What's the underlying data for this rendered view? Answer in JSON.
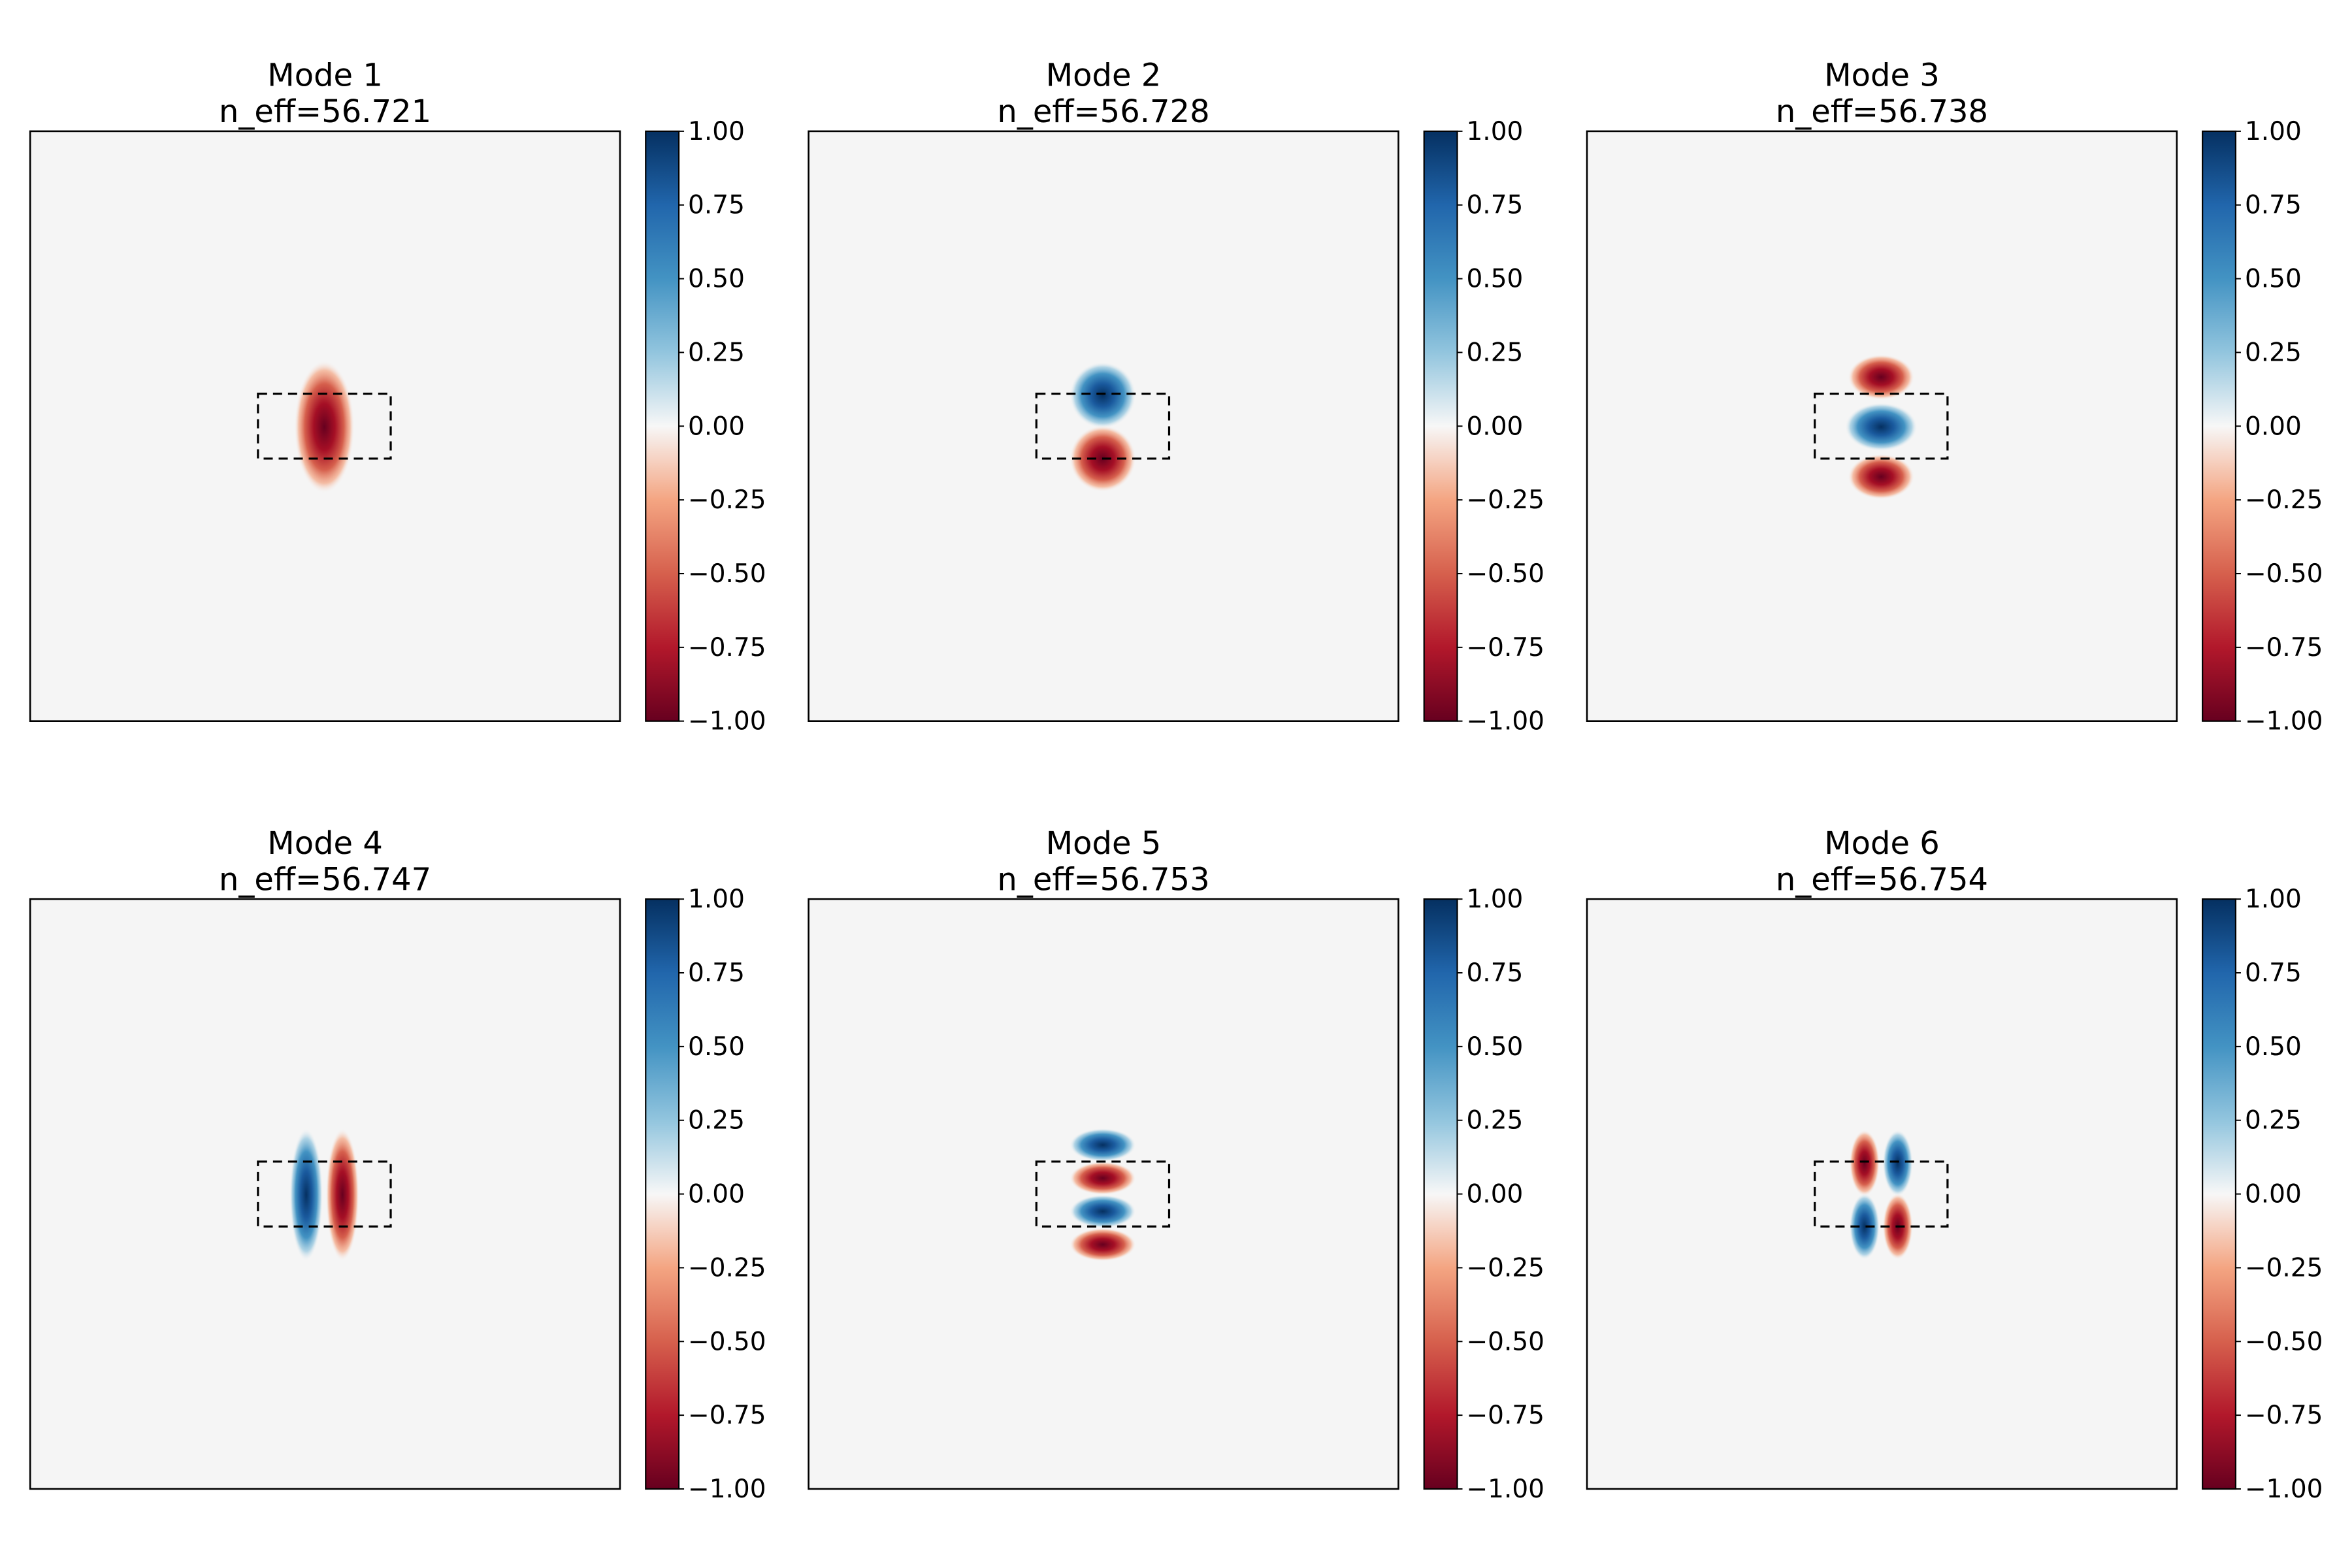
{
  "figure": {
    "layout": "2x3 grid of field-mode heatmaps with colorbars"
  },
  "chart_data": [
    {
      "type": "heatmap",
      "title": "Mode 1",
      "subtitle": "n_eff=56.721",
      "pattern": "single red lobe centered in waveguide",
      "clim": [
        -1.0,
        1.0
      ],
      "colormap": "RdBu",
      "colorbar_ticks": [
        "1.00",
        "0.75",
        "0.50",
        "0.25",
        "0.00",
        "−0.25",
        "−0.50",
        "−0.75",
        "−1.00"
      ],
      "core_outline": "dashed rectangle"
    },
    {
      "type": "heatmap",
      "title": "Mode 2",
      "subtitle": "n_eff=56.728",
      "pattern": "two vertical lobes: blue top, red bottom",
      "clim": [
        -1.0,
        1.0
      ],
      "colormap": "RdBu",
      "colorbar_ticks": [
        "1.00",
        "0.75",
        "0.50",
        "0.25",
        "0.00",
        "−0.25",
        "−0.50",
        "−0.75",
        "−1.00"
      ],
      "core_outline": "dashed rectangle"
    },
    {
      "type": "heatmap",
      "title": "Mode 3",
      "subtitle": "n_eff=56.738",
      "pattern": "three vertical lobes: red, blue, red",
      "clim": [
        -1.0,
        1.0
      ],
      "colormap": "RdBu",
      "colorbar_ticks": [
        "1.00",
        "0.75",
        "0.50",
        "0.25",
        "0.00",
        "−0.25",
        "−0.50",
        "−0.75",
        "−1.00"
      ],
      "core_outline": "dashed rectangle"
    },
    {
      "type": "heatmap",
      "title": "Mode 4",
      "subtitle": "n_eff=56.747",
      "pattern": "two horizontal lobes: blue left, red right",
      "clim": [
        -1.0,
        1.0
      ],
      "colormap": "RdBu",
      "colorbar_ticks": [
        "1.00",
        "0.75",
        "0.50",
        "0.25",
        "0.00",
        "−0.25",
        "−0.50",
        "−0.75",
        "−1.00"
      ],
      "core_outline": "dashed rectangle"
    },
    {
      "type": "heatmap",
      "title": "Mode 5",
      "subtitle": "n_eff=56.753",
      "pattern": "four vertical lobes: blue, red, blue, red",
      "clim": [
        -1.0,
        1.0
      ],
      "colormap": "RdBu",
      "colorbar_ticks": [
        "1.00",
        "0.75",
        "0.50",
        "0.25",
        "0.00",
        "−0.25",
        "−0.50",
        "−0.75",
        "−1.00"
      ],
      "core_outline": "dashed rectangle"
    },
    {
      "type": "heatmap",
      "title": "Mode 6",
      "subtitle": "n_eff=56.754",
      "pattern": "2x2 lobes: red/blue top, blue/red bottom",
      "clim": [
        -1.0,
        1.0
      ],
      "colormap": "RdBu",
      "colorbar_ticks": [
        "1.00",
        "0.75",
        "0.50",
        "0.25",
        "0.00",
        "−0.25",
        "−0.50",
        "−0.75",
        "−1.00"
      ],
      "core_outline": "dashed rectangle"
    }
  ],
  "colors": {
    "background_field": "#f5f5f5",
    "max_positive": "#053061",
    "max_negative": "#67001f",
    "outline": "#000000"
  }
}
